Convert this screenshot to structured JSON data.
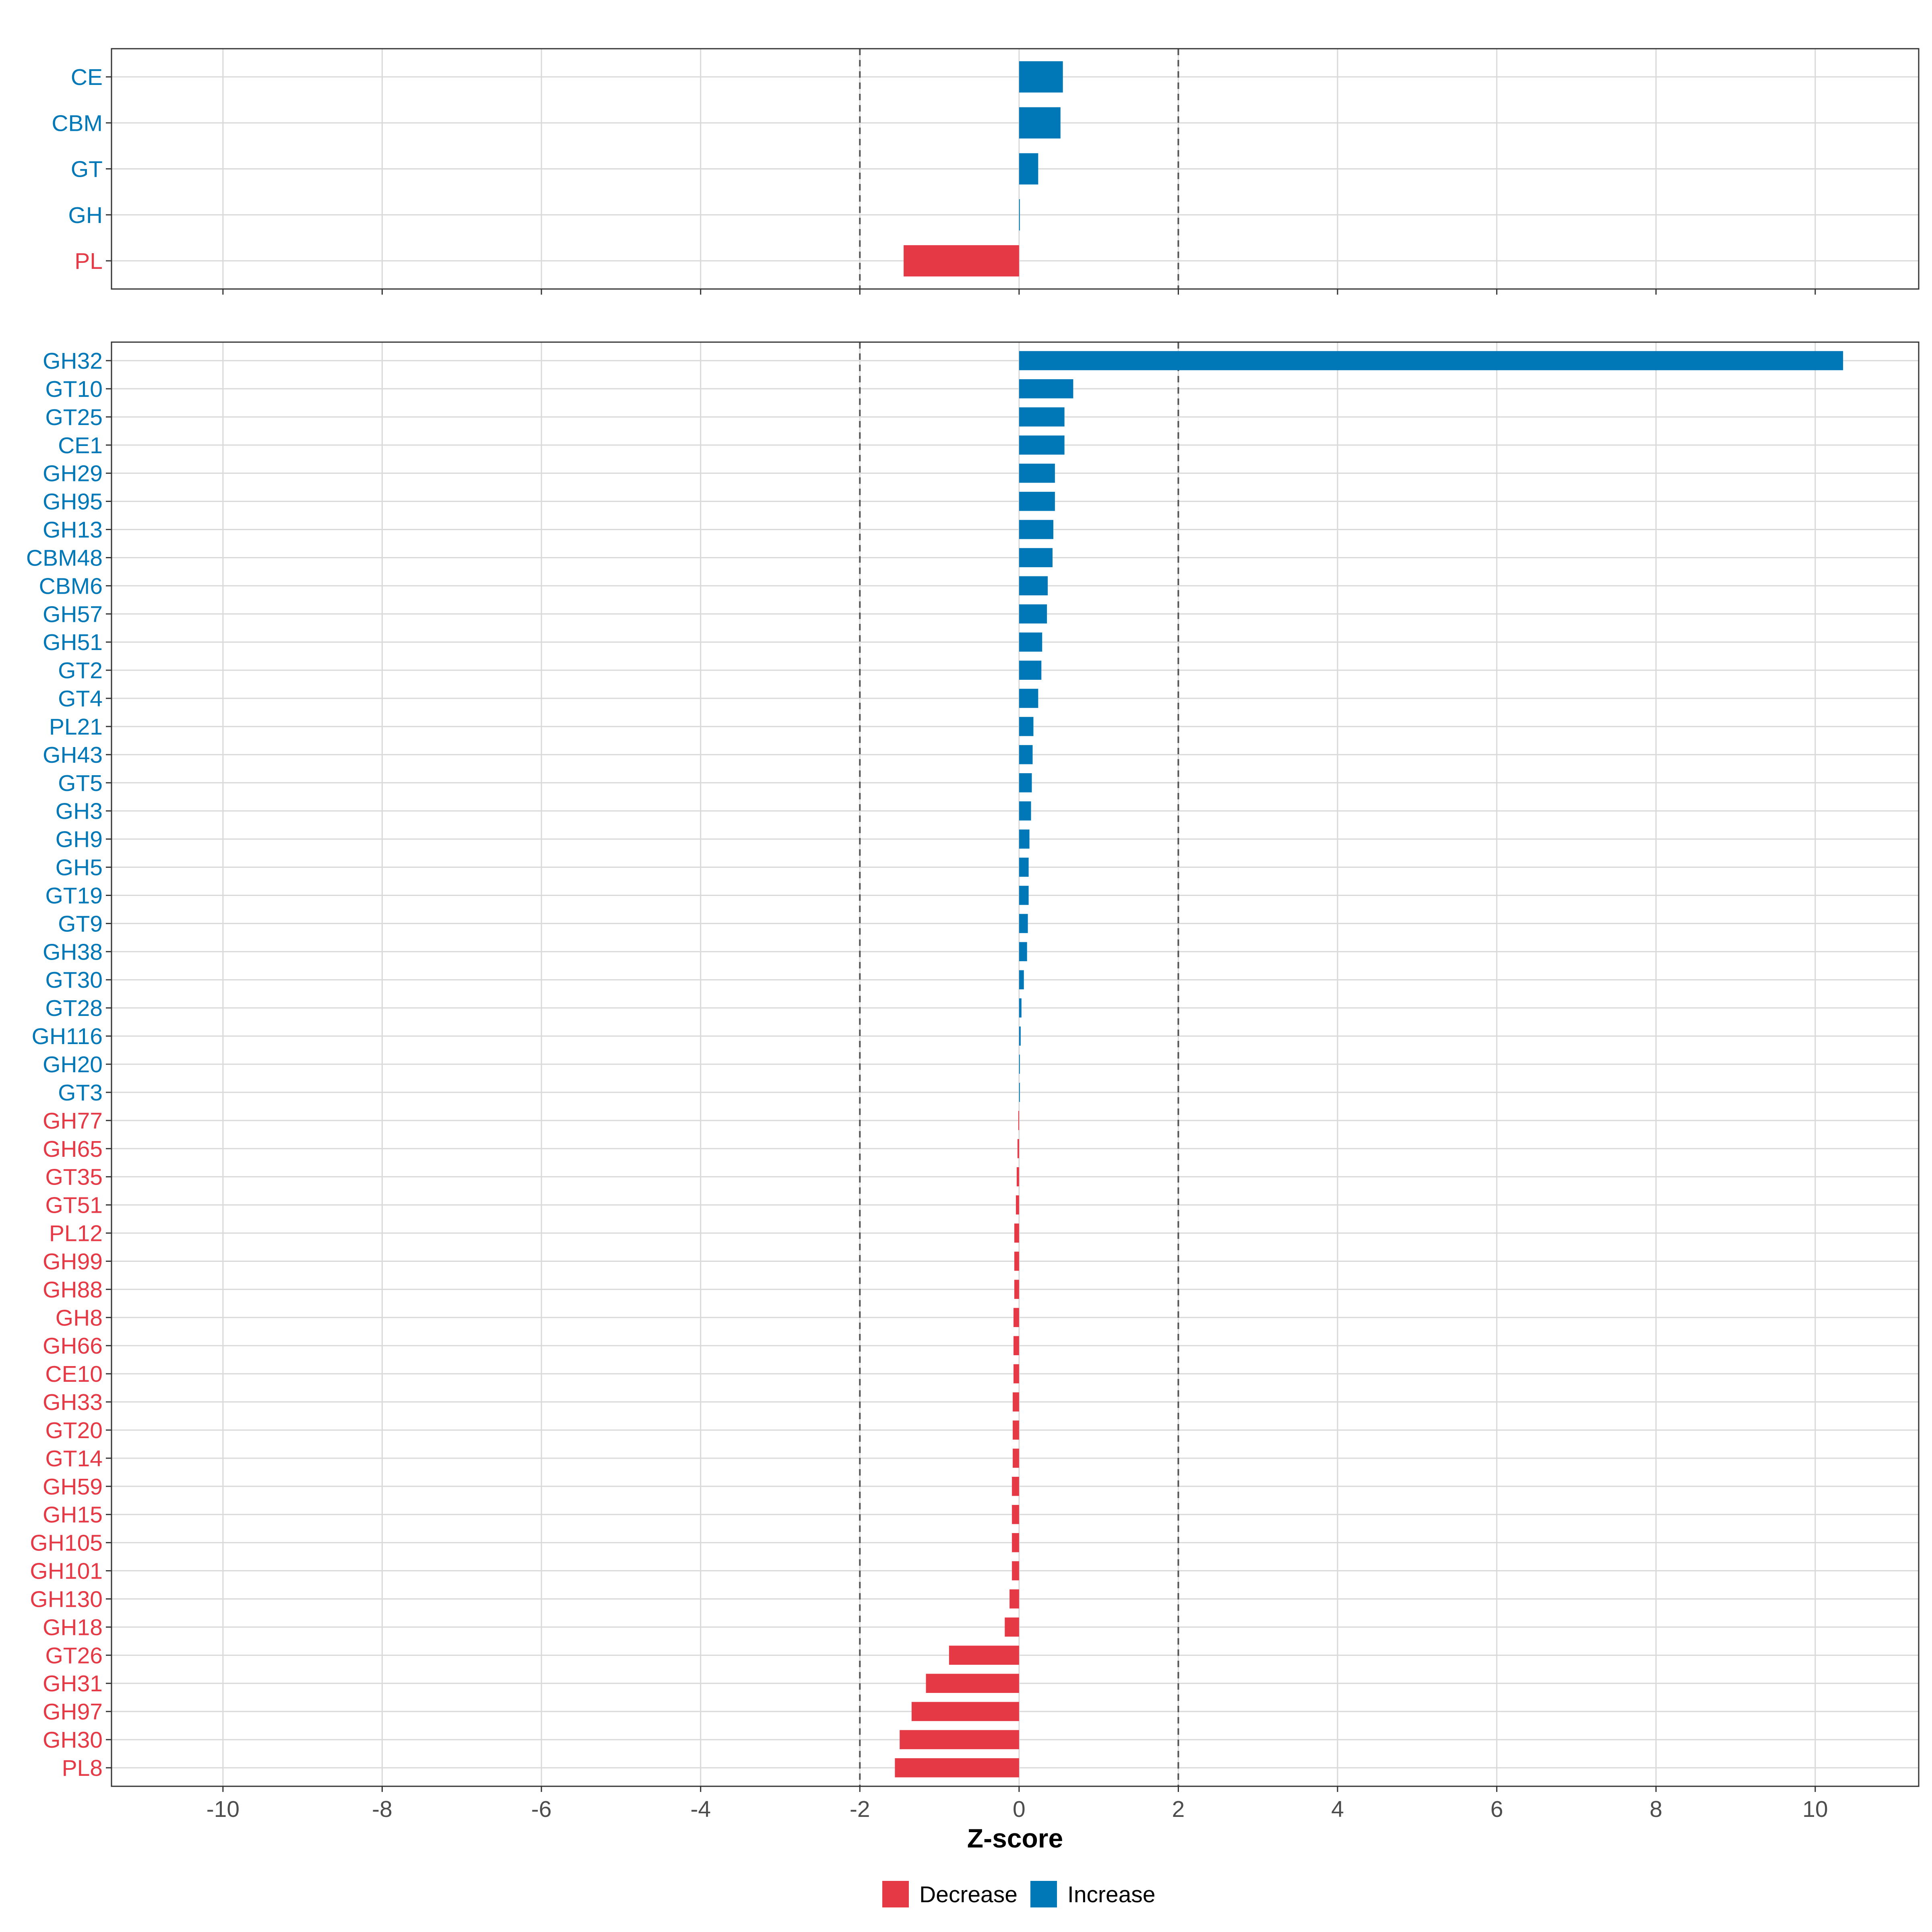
{
  "colors": {
    "increase": "#0077B7",
    "decrease": "#E63946",
    "grid": "#D9D9D9",
    "ref_line": "#555555",
    "panel_border": "#333333"
  },
  "chart_data": {
    "type": "bar",
    "orientation": "horizontal",
    "xlabel": "Z-score",
    "xlim": [
      -11.4,
      11.3
    ],
    "xticks": [
      -10,
      -8,
      -6,
      -4,
      -2,
      0,
      2,
      4,
      6,
      8,
      10
    ],
    "reference_lines": [
      -2,
      2
    ],
    "grid": true,
    "legend": {
      "placement": "bottom",
      "entries": [
        {
          "label": "Decrease",
          "color_key": "decrease"
        },
        {
          "label": "Increase",
          "color_key": "increase"
        }
      ]
    },
    "panels": [
      {
        "name": "class",
        "categories": [
          "CE",
          "CBM",
          "GT",
          "GH",
          "PL"
        ],
        "values": [
          0.55,
          0.52,
          0.24,
          0.01,
          -1.45
        ]
      },
      {
        "name": "family",
        "categories": [
          "GH32",
          "GT10",
          "GT25",
          "CE1",
          "GH29",
          "GH95",
          "GH13",
          "CBM48",
          "CBM6",
          "GH57",
          "GH51",
          "GT2",
          "GT4",
          "PL21",
          "GH43",
          "GT5",
          "GH3",
          "GH9",
          "GH5",
          "GT19",
          "GT9",
          "GH38",
          "GT30",
          "GT28",
          "GH116",
          "GH20",
          "GT3",
          "GH77",
          "GH65",
          "GT35",
          "GT51",
          "PL12",
          "GH99",
          "GH88",
          "GH8",
          "GH66",
          "CE10",
          "GH33",
          "GT20",
          "GT14",
          "GH59",
          "GH15",
          "GH105",
          "GH101",
          "GH130",
          "GH18",
          "GT26",
          "GH31",
          "GH97",
          "GH30",
          "PL8"
        ],
        "values": [
          10.35,
          0.68,
          0.57,
          0.57,
          0.45,
          0.45,
          0.43,
          0.42,
          0.36,
          0.35,
          0.29,
          0.28,
          0.24,
          0.18,
          0.17,
          0.16,
          0.15,
          0.13,
          0.12,
          0.12,
          0.11,
          0.1,
          0.06,
          0.03,
          0.02,
          0.01,
          0.01,
          -0.01,
          -0.02,
          -0.03,
          -0.04,
          -0.06,
          -0.06,
          -0.06,
          -0.07,
          -0.07,
          -0.07,
          -0.08,
          -0.08,
          -0.08,
          -0.09,
          -0.09,
          -0.09,
          -0.09,
          -0.12,
          -0.18,
          -0.88,
          -1.17,
          -1.35,
          -1.5,
          -1.56
        ]
      }
    ]
  }
}
